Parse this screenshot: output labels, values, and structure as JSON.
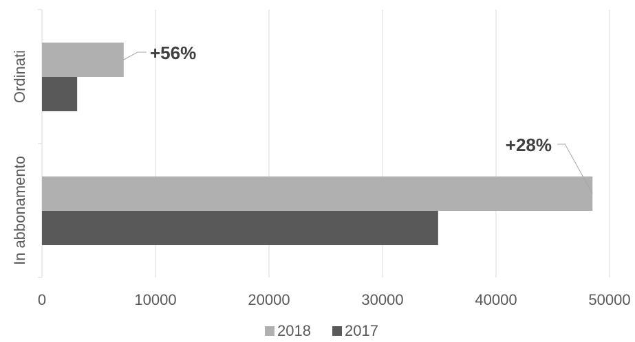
{
  "chart_data": {
    "type": "bar",
    "orientation": "horizontal",
    "categories": [
      "Ordinati",
      "In abbonamento"
    ],
    "series": [
      {
        "name": "2018",
        "values": [
          7200,
          48500
        ],
        "color": "#b0b0b0"
      },
      {
        "name": "2017",
        "values": [
          3100,
          34900
        ],
        "color": "#595959"
      }
    ],
    "xlim": [
      0,
      50000
    ],
    "xticks": [
      "0",
      "10000",
      "20000",
      "30000",
      "40000",
      "50000"
    ],
    "annotations": [
      {
        "category": "Ordinati",
        "text": "+56%"
      },
      {
        "category": "In abbonamento",
        "text": "+28%"
      }
    ],
    "grid": true,
    "legend": "bottom"
  }
}
